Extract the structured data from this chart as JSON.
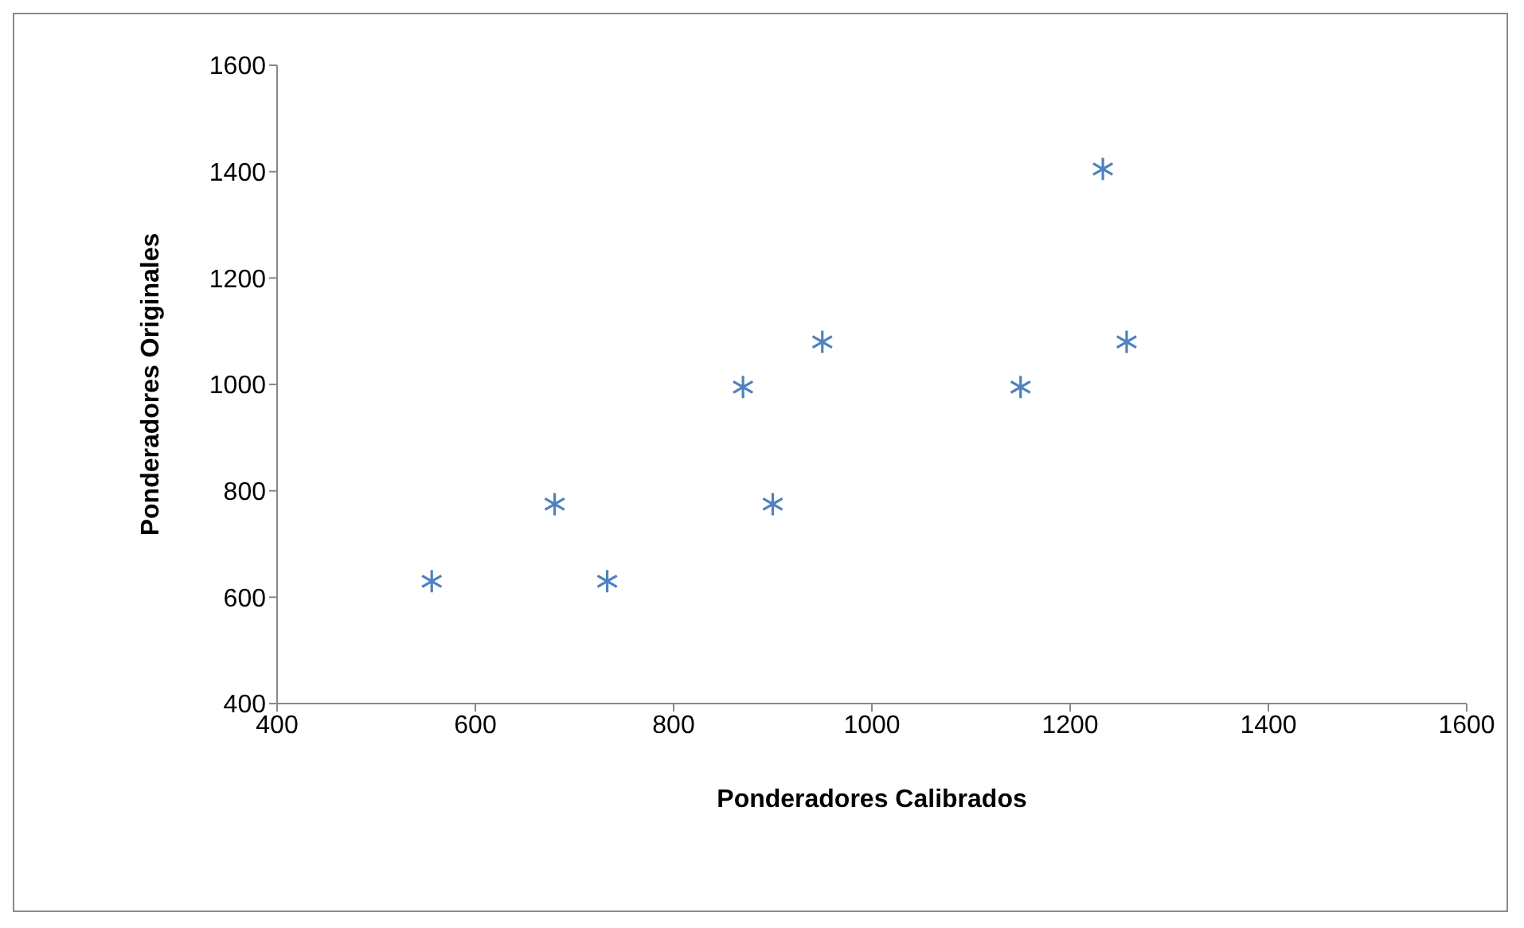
{
  "chart_data": {
    "type": "scatter",
    "xlabel": "Ponderadores Calibrados",
    "ylabel": "Ponderadores Originales",
    "x": [
      556,
      680,
      733,
      870,
      900,
      950,
      1150,
      1233,
      1257
    ],
    "series": [
      {
        "color": "#4f81bd",
        "values": [
          630,
          775,
          630,
          995,
          775,
          1080,
          995,
          1405,
          1080
        ]
      }
    ],
    "xlim": [
      400,
      1600
    ],
    "xticks": [
      400,
      600,
      800,
      1000,
      1200,
      1400,
      1600
    ],
    "ylim": [
      400,
      1600
    ],
    "yticks": [
      400,
      600,
      800,
      1000,
      1200,
      1400,
      1600
    ],
    "grid": false,
    "legend": false,
    "marker": "cross"
  }
}
